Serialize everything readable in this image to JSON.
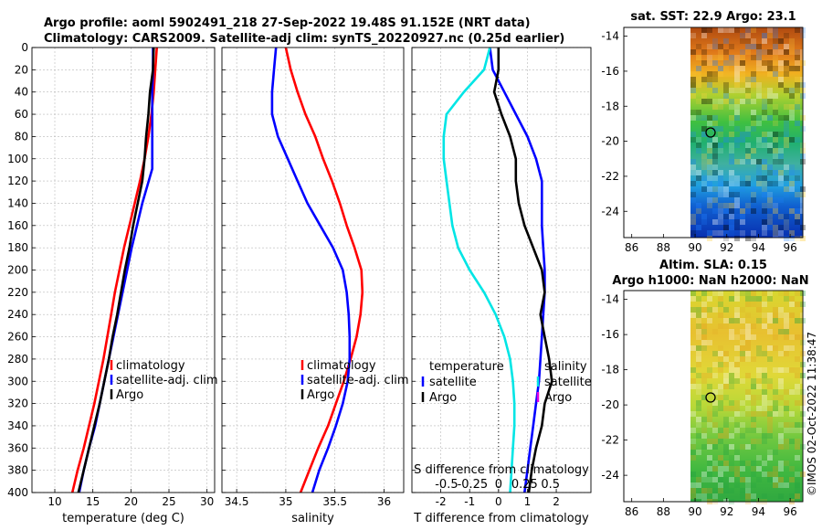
{
  "title": {
    "line1": "Argo profile: aoml 5902491_218 27-Sep-2022 19.48S 91.152E (NRT data)",
    "line2": "Climatology: CARS2009. Satellite-adj clim: synTS_20220927.nc (0.25d earlier)"
  },
  "side_label": "©IMOS 02-Oct-2022 11:38:47",
  "colors": {
    "climatology": "#ff0000",
    "satellite": "#0000ff",
    "argo": "#000000",
    "cyan": "#00e5e5",
    "magenta": "#e000e0"
  },
  "chart_data": [
    {
      "id": "temperature",
      "type": "line",
      "xlabel": "temperature (deg C)",
      "ylabel": "",
      "xlim": [
        7,
        31
      ],
      "ylim": [
        400,
        0
      ],
      "xticks": [
        10,
        15,
        20,
        25,
        30
      ],
      "xtick_labels": [
        "10",
        "15",
        "20",
        "25",
        "30"
      ],
      "yticks": [
        0,
        20,
        40,
        60,
        80,
        100,
        120,
        140,
        160,
        180,
        200,
        220,
        240,
        260,
        280,
        300,
        320,
        340,
        360,
        380,
        400
      ],
      "ytick_labels": [
        "0",
        "20",
        "40",
        "60",
        "80",
        "100",
        "120",
        "140",
        "160",
        "180",
        "200",
        "220",
        "240",
        "260",
        "280",
        "300",
        "320",
        "340",
        "360",
        "380",
        "400"
      ],
      "legend": [
        "climatology",
        "satellite-adj. clim",
        "Argo"
      ],
      "series": [
        {
          "name": "climatology",
          "color": "#ff0000",
          "x": [
            23.4,
            23.2,
            23.0,
            22.7,
            22.3,
            21.8,
            21.2,
            20.5,
            19.8,
            19.1,
            18.5,
            17.9,
            17.4,
            16.9,
            16.4,
            15.8,
            15.2,
            14.5,
            13.8,
            13.0,
            12.3
          ],
          "y": [
            0,
            20,
            40,
            60,
            80,
            100,
            120,
            140,
            160,
            180,
            200,
            220,
            240,
            260,
            280,
            300,
            320,
            340,
            360,
            380,
            400
          ]
        },
        {
          "name": "satellite-adj. clim",
          "color": "#0000ff",
          "x": [
            22.9,
            22.9,
            22.8,
            22.8,
            22.8,
            22.8,
            22.8,
            21.5,
            20.8,
            20.1,
            19.5,
            18.9,
            18.3,
            17.7,
            17.1,
            16.5,
            15.9,
            15.3,
            14.5,
            13.8,
            13.2
          ],
          "y": [
            0,
            20,
            40,
            60,
            80,
            100,
            109,
            140,
            160,
            180,
            200,
            220,
            240,
            260,
            280,
            300,
            320,
            340,
            360,
            380,
            400
          ]
        },
        {
          "name": "Argo",
          "color": "#000000",
          "x": [
            23.0,
            22.9,
            22.5,
            22.3,
            22.0,
            21.8,
            21.5,
            20.9,
            20.3,
            19.8,
            19.2,
            18.7,
            18.2,
            17.6,
            17.1,
            16.5,
            15.9,
            15.2,
            14.5,
            13.8,
            13.1
          ],
          "y": [
            0,
            20,
            40,
            60,
            80,
            100,
            120,
            140,
            160,
            180,
            200,
            220,
            240,
            260,
            280,
            300,
            320,
            340,
            360,
            380,
            400
          ]
        }
      ]
    },
    {
      "id": "salinity",
      "type": "line",
      "xlabel": "salinity",
      "xlim": [
        34.35,
        36.2
      ],
      "ylim": [
        400,
        0
      ],
      "xticks": [
        34.5,
        35,
        35.5,
        36
      ],
      "xtick_labels": [
        "34.5",
        "35",
        "35.5",
        "36"
      ],
      "legend": [
        "climatology",
        "satellite-adj. clim",
        "Argo"
      ],
      "series": [
        {
          "name": "climatology",
          "color": "#ff0000",
          "x": [
            35.0,
            35.05,
            35.12,
            35.2,
            35.3,
            35.38,
            35.47,
            35.55,
            35.62,
            35.7,
            35.77,
            35.78,
            35.76,
            35.72,
            35.66,
            35.59,
            35.51,
            35.43,
            35.33,
            35.24,
            35.15
          ],
          "y": [
            0,
            20,
            40,
            60,
            80,
            100,
            120,
            140,
            160,
            180,
            200,
            220,
            240,
            260,
            280,
            300,
            320,
            340,
            360,
            380,
            400
          ]
        },
        {
          "name": "satellite-adj. clim",
          "color": "#0000ff",
          "x": [
            34.9,
            34.88,
            34.86,
            34.86,
            34.92,
            35.02,
            35.12,
            35.22,
            35.35,
            35.48,
            35.58,
            35.62,
            35.64,
            35.65,
            35.65,
            35.63,
            35.58,
            35.51,
            35.43,
            35.34,
            35.27
          ],
          "y": [
            0,
            20,
            40,
            60,
            80,
            100,
            120,
            140,
            160,
            180,
            200,
            220,
            240,
            260,
            280,
            300,
            320,
            340,
            360,
            380,
            400
          ]
        }
      ]
    },
    {
      "id": "difference",
      "type": "line",
      "xlabel": "T difference from climatology",
      "xlabel_top": "S difference from climatology",
      "xlim": [
        -3,
        3.2
      ],
      "ylim": [
        400,
        0
      ],
      "xticks": [
        -2,
        -1,
        0,
        1,
        2
      ],
      "xtick_labels": [
        "-2",
        "-1",
        "0",
        "1",
        "2"
      ],
      "top_ticks": [
        -0.5,
        -0.25,
        0,
        0.25,
        0.5
      ],
      "top_tick_labels": [
        "-0.5",
        "-0.25",
        "0",
        "0.25",
        "0.5"
      ],
      "legend_left": [
        "temperature",
        "satellite",
        "Argo"
      ],
      "legend_right": [
        "salinity",
        "satellite",
        "Argo"
      ],
      "series": [
        {
          "name": "T satellite",
          "color": "#0000ff",
          "x": [
            -0.3,
            -0.2,
            0.2,
            0.6,
            1.0,
            1.3,
            1.5,
            1.5,
            1.5,
            1.55,
            1.6,
            1.6,
            1.55,
            1.5,
            1.45,
            1.4,
            1.3,
            1.2,
            1.1,
            1.0,
            0.9
          ],
          "y": [
            0,
            20,
            40,
            60,
            80,
            100,
            120,
            140,
            160,
            180,
            200,
            220,
            240,
            260,
            280,
            300,
            320,
            340,
            360,
            380,
            400
          ]
        },
        {
          "name": "S satellite",
          "color": "#00e5e5",
          "x": [
            -0.3,
            -0.5,
            -1.2,
            -1.8,
            -1.9,
            -1.9,
            -1.8,
            -1.7,
            -1.6,
            -1.4,
            -1.0,
            -0.5,
            -0.1,
            0.2,
            0.4,
            0.5,
            0.55,
            0.55,
            0.5,
            0.45,
            0.4
          ],
          "y": [
            0,
            20,
            40,
            60,
            80,
            100,
            120,
            140,
            160,
            180,
            200,
            220,
            240,
            260,
            280,
            300,
            320,
            340,
            360,
            380,
            400
          ]
        },
        {
          "name": "T Argo",
          "color": "#000000",
          "x": [
            0.0,
            0.0,
            -0.15,
            0.1,
            0.4,
            0.6,
            0.6,
            0.7,
            0.9,
            1.2,
            1.5,
            1.6,
            1.45,
            1.6,
            1.75,
            1.85,
            1.6,
            1.5,
            1.3,
            1.15,
            1.05
          ],
          "y": [
            0,
            20,
            40,
            60,
            80,
            100,
            120,
            140,
            160,
            180,
            200,
            220,
            240,
            260,
            280,
            300,
            320,
            340,
            360,
            380,
            400
          ]
        }
      ]
    },
    {
      "id": "sst_map",
      "type": "heatmap",
      "title": "sat. SST: 22.9 Argo: 23.1",
      "xlim": [
        85.5,
        96.8
      ],
      "ylim": [
        -25.5,
        -13.5
      ],
      "xticks": [
        86,
        88,
        90,
        92,
        94,
        96
      ],
      "xtick_labels": [
        "86",
        "88",
        "90",
        "92",
        "94",
        "96"
      ],
      "yticks": [
        -14,
        -16,
        -18,
        -20,
        -22,
        -24
      ],
      "ytick_labels": [
        "-14",
        "-16",
        "-18",
        "-20",
        "-22",
        "-24"
      ],
      "data_lon_start": 90,
      "profile_location": {
        "lon": 91.152,
        "lat": -19.48
      }
    },
    {
      "id": "sla_map",
      "type": "heatmap",
      "title": "Altim. SLA: 0.15",
      "subtitle": "Argo h1000: NaN h2000: NaN",
      "xlim": [
        85.5,
        96.8
      ],
      "ylim": [
        -25.5,
        -13.5
      ],
      "xticks": [
        86,
        88,
        90,
        92,
        94,
        96
      ],
      "xtick_labels": [
        "86",
        "88",
        "90",
        "92",
        "94",
        "96"
      ],
      "yticks": [
        -14,
        -16,
        -18,
        -20,
        -22,
        -24
      ],
      "ytick_labels": [
        "-14",
        "-16",
        "-18",
        "-20",
        "-22",
        "-24"
      ],
      "data_lon_start": 90,
      "profile_location": {
        "lon": 91.152,
        "lat": -19.48
      }
    }
  ]
}
